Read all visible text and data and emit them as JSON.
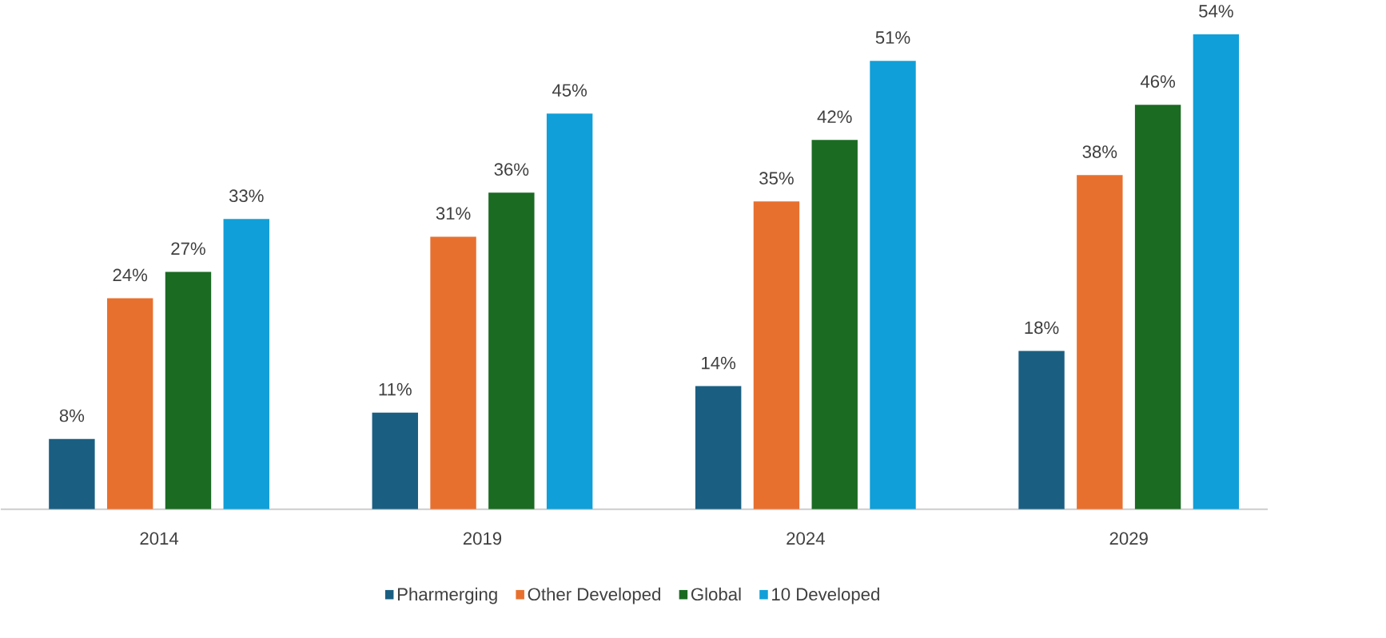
{
  "chart_data": {
    "type": "bar",
    "categories": [
      "2014",
      "2019",
      "2024",
      "2029"
    ],
    "series": [
      {
        "name": "Pharmerging",
        "color": "#1a5f82",
        "values": [
          8,
          11,
          14,
          18
        ],
        "value_labels": [
          "8%",
          "11%",
          "14%",
          "18%"
        ]
      },
      {
        "name": "Other Developed",
        "color": "#e8702f",
        "values": [
          24,
          31,
          35,
          38
        ],
        "value_labels": [
          "24%",
          "31%",
          "35%",
          "38%"
        ]
      },
      {
        "name": "Global",
        "color": "#1b6b23",
        "values": [
          27,
          36,
          42,
          46
        ],
        "value_labels": [
          "27%",
          "36%",
          "42%",
          "46%"
        ]
      },
      {
        "name": "10 Developed",
        "color": "#109fd8",
        "values": [
          33,
          45,
          51,
          54
        ],
        "value_labels": [
          "33%",
          "45%",
          "51%",
          "54%"
        ]
      }
    ],
    "legend": "bottom"
  }
}
